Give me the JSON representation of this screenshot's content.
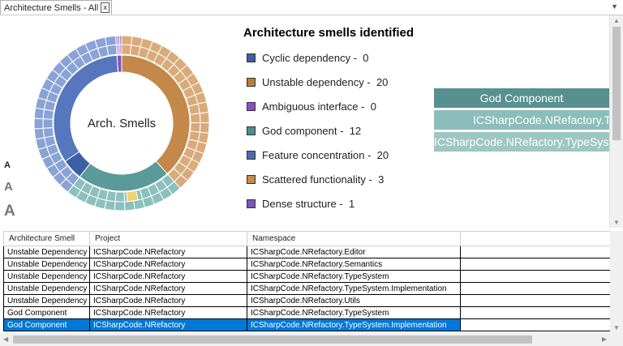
{
  "tab": {
    "title": "Architecture Smells - All",
    "close_label": "x"
  },
  "font_size_controls": [
    "A",
    "A",
    "A"
  ],
  "chart_data": {
    "type": "sunburst",
    "center_label": "Arch. Smells",
    "title": "Architecture smells identified",
    "series": [
      {
        "name": "Cyclic dependency",
        "count": 0,
        "color": "#3d5fa3"
      },
      {
        "name": "Unstable dependency",
        "count": 20,
        "color": "#b97c3c"
      },
      {
        "name": "Ambiguous interface",
        "count": 0,
        "color": "#8a4fc5"
      },
      {
        "name": "God component",
        "count": 12,
        "color": "#4a8f8c"
      },
      {
        "name": "Feature concentration",
        "count": 20,
        "color": "#4a6bb6"
      },
      {
        "name": "Scattered functionality",
        "count": 3,
        "color": "#c98a3e"
      },
      {
        "name": "Dense structure",
        "count": 1,
        "color": "#7a53c5"
      }
    ]
  },
  "breadcrumb": [
    {
      "label": "God Component",
      "color": "#57908f"
    },
    {
      "label": "ICSharpCode.NRefactory.TypeSystem",
      "color": "#8bbdbb"
    },
    {
      "label": "ICSharpCode.NRefactory.TypeSystem",
      "color": "#9cc7c4"
    }
  ],
  "table": {
    "columns": [
      "Architecture Smell",
      "Project",
      "Namespace"
    ],
    "rows": [
      [
        "Unstable Dependency",
        "ICSharpCode.NRefactory",
        "ICSharpCode.NRefactory.Editor"
      ],
      [
        "Unstable Dependency",
        "ICSharpCode.NRefactory",
        "ICSharpCode.NRefactory.Semantics"
      ],
      [
        "Unstable Dependency",
        "ICSharpCode.NRefactory",
        "ICSharpCode.NRefactory.TypeSystem"
      ],
      [
        "Unstable Dependency",
        "ICSharpCode.NRefactory",
        "ICSharpCode.NRefactory.TypeSystem.Implementation"
      ],
      [
        "Unstable Dependency",
        "ICSharpCode.NRefactory",
        "ICSharpCode.NRefactory.Utils"
      ],
      [
        "God Component",
        "ICSharpCode.NRefactory",
        "ICSharpCode.NRefactory.TypeSystem"
      ],
      [
        "God Component",
        "ICSharpCode.NRefactory",
        "ICSharpCode.NRefactory.TypeSystem.Implementation"
      ]
    ],
    "selected_row": 6
  }
}
